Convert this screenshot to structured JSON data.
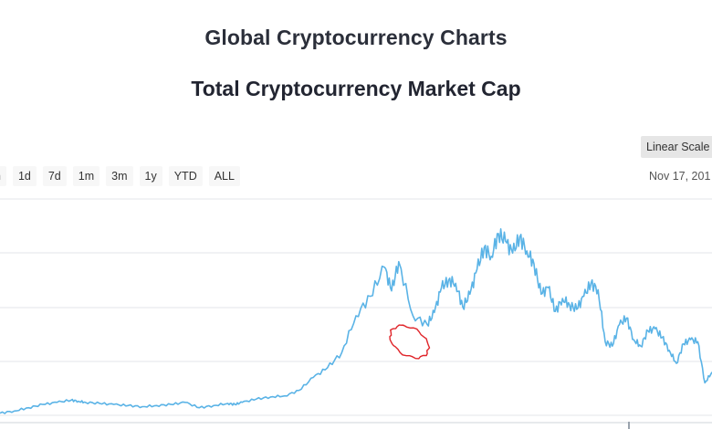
{
  "header": {
    "page_title": "Global Cryptocurrency Charts",
    "chart_title": "Total Cryptocurrency Market Cap"
  },
  "controls": {
    "scale_label": "Linear Scale",
    "ranges": [
      {
        "label": "h"
      },
      {
        "label": "1d"
      },
      {
        "label": "7d"
      },
      {
        "label": "1m"
      },
      {
        "label": "3m"
      },
      {
        "label": "1y"
      },
      {
        "label": "YTD"
      },
      {
        "label": "ALL"
      }
    ],
    "date_label": "Nov 17, 201"
  },
  "colors": {
    "line": "#5ab3e6",
    "grid": "#e3e6ea",
    "annotation": "#e0252a"
  },
  "chart_data": {
    "type": "line",
    "title": "Total Cryptocurrency Market Cap",
    "grid": true,
    "ylim": [
      0,
      200
    ],
    "xlim": [
      0,
      100
    ],
    "note": "values read in relative units (no axis tick labels visible)",
    "series": [
      {
        "x": [
          0,
          2,
          4,
          6,
          8,
          10,
          11,
          12,
          14,
          16,
          18,
          20,
          22,
          24,
          26,
          28,
          30,
          32,
          33,
          34,
          36,
          38,
          40,
          42,
          44,
          46,
          48,
          50,
          52,
          54,
          55,
          56,
          58,
          60,
          61,
          62,
          63,
          64,
          65,
          66,
          67,
          68,
          69,
          70,
          71,
          72,
          73,
          74,
          75,
          76,
          77,
          78,
          79,
          80,
          81,
          82,
          83,
          84,
          85,
          86,
          87,
          88,
          89,
          90,
          91,
          92,
          93,
          94,
          95,
          96,
          97,
          98,
          99,
          100
        ],
        "values": [
          2,
          4,
          7,
          10,
          12,
          14,
          13,
          12,
          11,
          10,
          9,
          8,
          9,
          10,
          12,
          7,
          9,
          11,
          10,
          12,
          15,
          17,
          18,
          23,
          35,
          44,
          58,
          92,
          110,
          137,
          115,
          142,
          92,
          84,
          95,
          118,
          125,
          122,
          100,
          112,
          135,
          155,
          147,
          168,
          161,
          150,
          165,
          152,
          140,
          112,
          118,
          96,
          108,
          102,
          98,
          110,
          122,
          116,
          68,
          64,
          84,
          90,
          70,
          64,
          78,
          80,
          72,
          60,
          48,
          66,
          70,
          68,
          30,
          40
        ]
      }
    ],
    "annotation": {
      "shape": "hand-drawn ellipse",
      "around_x": 57.5,
      "around_y": 68
    }
  }
}
